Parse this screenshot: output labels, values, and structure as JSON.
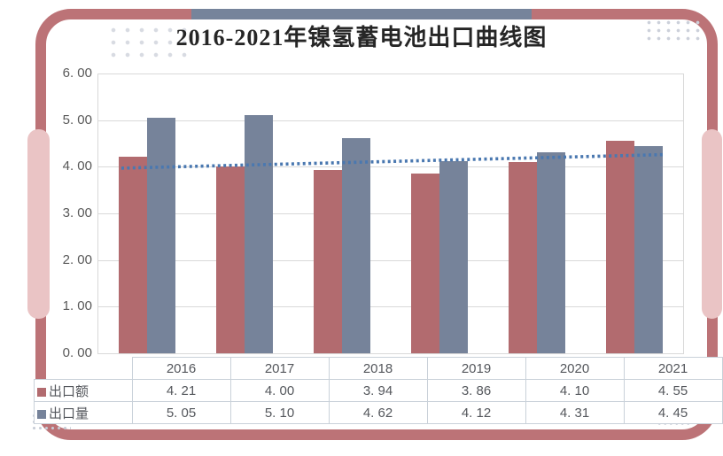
{
  "title": "2016-2021年镍氢蓄电池出口曲线图",
  "chart_data": {
    "type": "bar",
    "categories": [
      "2016",
      "2017",
      "2018",
      "2019",
      "2020",
      "2021"
    ],
    "series": [
      {
        "name": "出口额",
        "color": "#b26b6f",
        "values": [
          4.21,
          4.0,
          3.94,
          3.86,
          4.1,
          4.55
        ]
      },
      {
        "name": "出口量",
        "color": "#76839a",
        "values": [
          5.05,
          5.1,
          4.62,
          4.12,
          4.31,
          4.45
        ]
      }
    ],
    "trendline": {
      "for_series": "出口额",
      "type": "linear",
      "start_value": 3.97,
      "end_value": 4.26,
      "color": "#4a78b0",
      "style": "dotted"
    },
    "ylim": [
      0,
      6
    ],
    "ytick_step": 1,
    "ytick_labels": [
      "0. 00",
      "1. 00",
      "2. 00",
      "3. 00",
      "4. 00",
      "5. 00",
      "6. 00"
    ],
    "grid": true,
    "legend_position": "table-left-column"
  },
  "table": {
    "rows": [
      {
        "label": "出口额",
        "values": [
          "4. 21",
          "4. 00",
          "3. 94",
          "3. 86",
          "4. 10",
          "4. 55"
        ]
      },
      {
        "label": "出口量",
        "values": [
          "5. 05",
          "5. 10",
          "4. 62",
          "4. 12",
          "4. 31",
          "4. 45"
        ]
      }
    ]
  },
  "colors": {
    "frame": "#bc7377",
    "accent_pink": "#eac4c5",
    "accent_gray": "#76849b",
    "bar_red": "#b26b6f",
    "bar_blue": "#76839a",
    "trendline": "#4a78b0",
    "gridline": "#d9d9d9",
    "table_border": "#c9d1d9",
    "text": "#595959"
  }
}
